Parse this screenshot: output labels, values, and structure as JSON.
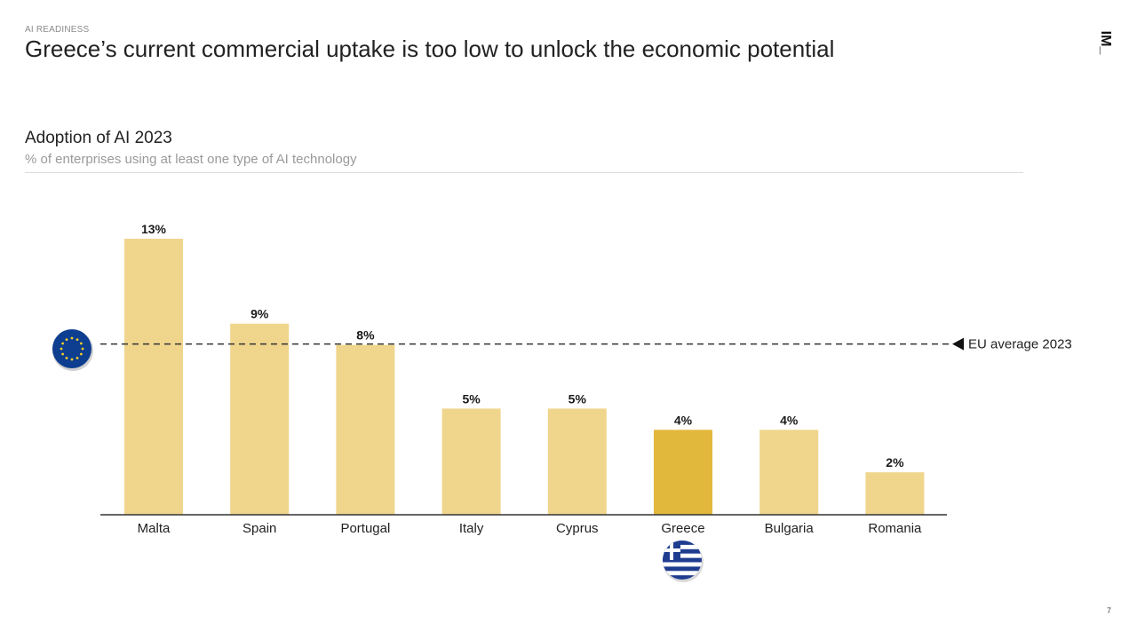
{
  "header": {
    "kicker": "AI READINESS",
    "title": "Greece’s current commercial uptake is too low to unlock the economic potential",
    "logo_text": "IM_"
  },
  "chart_data": {
    "type": "bar",
    "title": "Adoption of AI 2023",
    "subtitle": "% of enterprises using at least one type of AI technology",
    "categories": [
      "Malta",
      "Spain",
      "Portugal",
      "Italy",
      "Cyprus",
      "Greece",
      "Bulgaria",
      "Romania"
    ],
    "values": [
      13,
      9,
      8,
      5,
      5,
      4,
      4,
      2
    ],
    "value_labels": [
      "13%",
      "9%",
      "8%",
      "5%",
      "5%",
      "4%",
      "4%",
      "2%"
    ],
    "highlight": "Greece",
    "ylim": [
      0,
      13
    ],
    "xlabel": "",
    "ylabel": "",
    "reference_line": {
      "label": "EU average 2023",
      "value": 8
    },
    "colors": {
      "bar": "#F0D58C",
      "highlight": "#E2B83C",
      "axis": "#333333",
      "dash": "#333333"
    }
  },
  "footer": {
    "page_number": "7"
  },
  "icons": {
    "eu_flag": "eu-flag-icon",
    "greece_flag": "greece-flag-icon"
  }
}
